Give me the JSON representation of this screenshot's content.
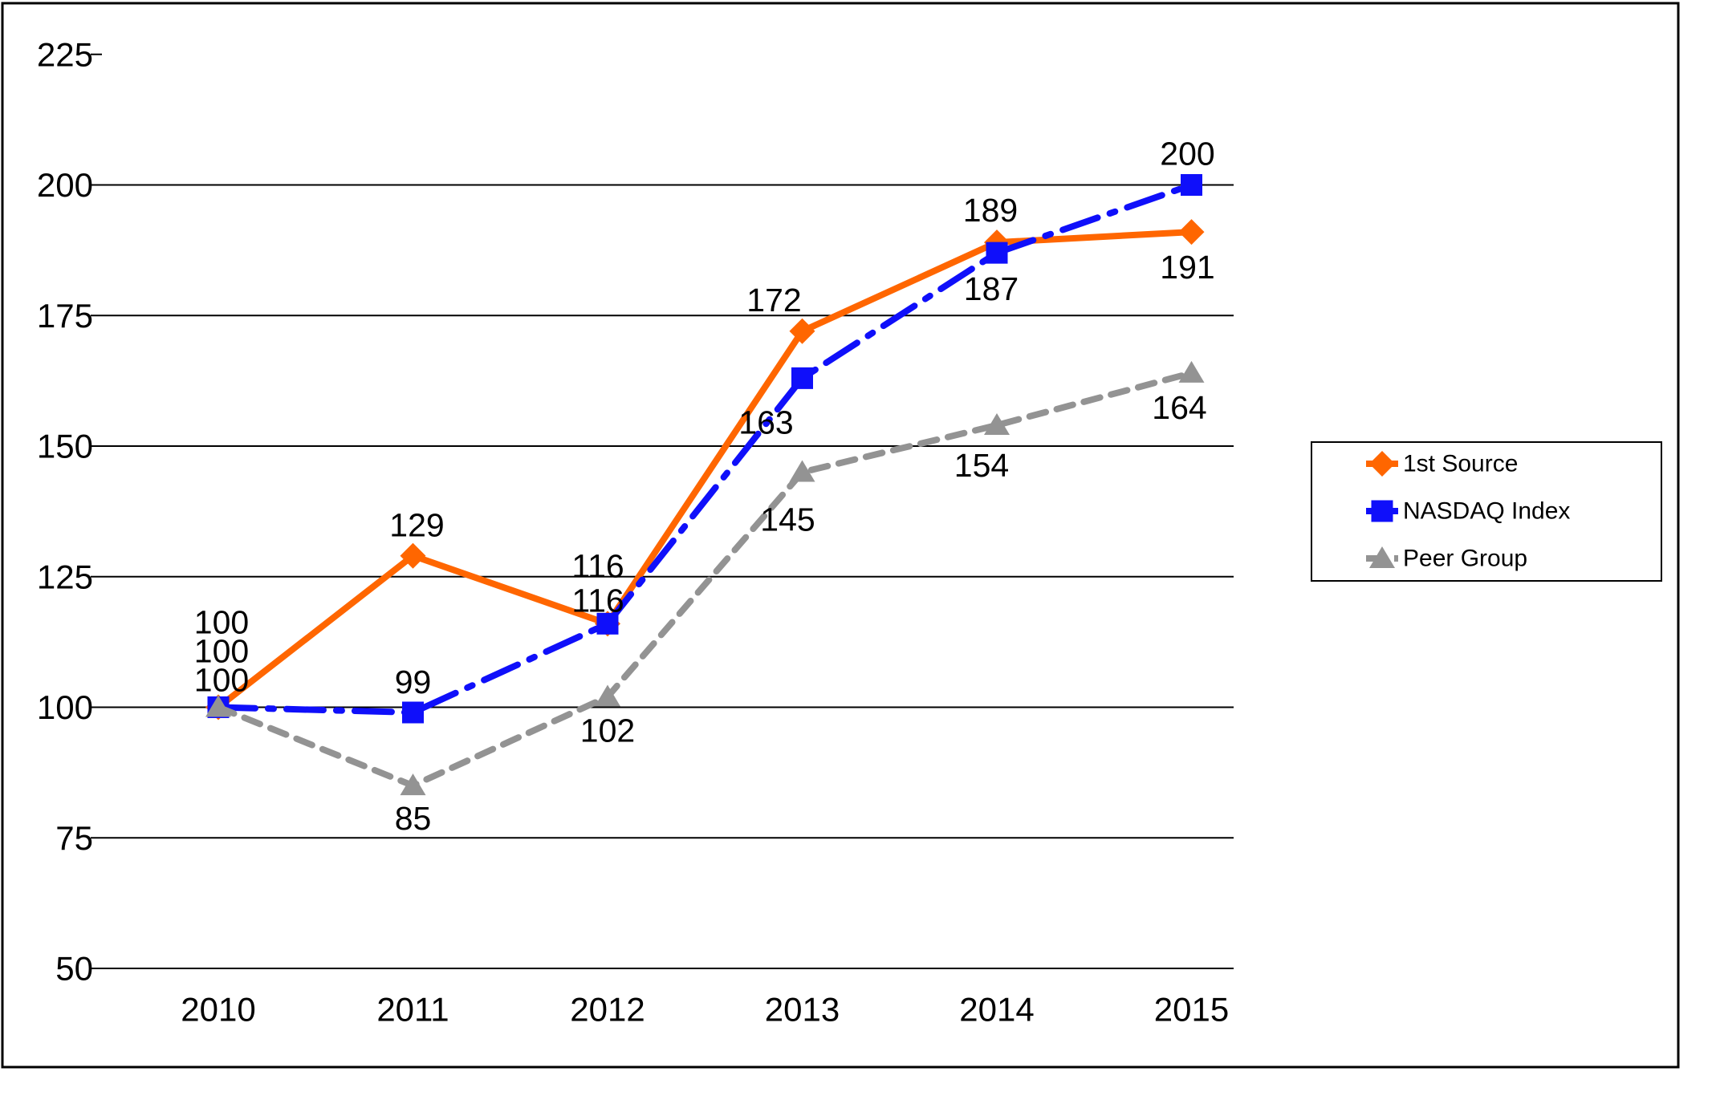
{
  "window": {
    "background": "#FFFFFF",
    "frame_border_color": "#000000"
  },
  "chart_data": {
    "type": "line",
    "title": "",
    "xlabel": "",
    "ylabel": "",
    "categories": [
      "2010",
      "2011",
      "2012",
      "2013",
      "2014",
      "2015"
    ],
    "series": [
      {
        "name": "1st Source",
        "color": "#FF6600",
        "marker": "diamond",
        "line_style": "solid",
        "values": [
          100,
          129,
          116,
          172,
          189,
          191
        ],
        "label_offsets": [
          [
            4,
            -106
          ],
          [
            5,
            -38
          ],
          [
            -12,
            -72
          ],
          [
            -35,
            -39
          ],
          [
            -8,
            -40
          ],
          [
            -5,
            44
          ]
        ]
      },
      {
        "name": "NASDAQ Index",
        "color": "#0F0FFA",
        "marker": "square",
        "line_style": "dash-dot",
        "values": [
          100,
          99,
          116,
          163,
          187,
          200
        ],
        "label_offsets": [
          [
            4,
            -70
          ],
          [
            0,
            -38
          ],
          [
            -12,
            -29
          ],
          [
            -45,
            55
          ],
          [
            -7,
            45
          ],
          [
            -5,
            -39
          ]
        ]
      },
      {
        "name": "Peer Group",
        "color": "#939393",
        "marker": "triangle",
        "line_style": "dashed",
        "values": [
          100,
          85,
          102,
          145,
          154,
          164
        ],
        "label_offsets": [
          [
            4,
            -34
          ],
          [
            0,
            41
          ],
          [
            0,
            42
          ],
          [
            -18,
            59
          ],
          [
            -19,
            50
          ],
          [
            -15,
            43
          ]
        ]
      }
    ],
    "ylim": [
      50,
      225
    ],
    "ytick_step": 25,
    "ytick_labels": [
      "225",
      "200",
      "175",
      "150",
      "125",
      "100",
      "75",
      "50"
    ],
    "grid": true,
    "gridline_color": "#000000",
    "text_color": "#000000",
    "data_labels": true,
    "legend": {
      "position": "right",
      "border_color": "#000000",
      "background": "#FFFFFF",
      "items": [
        "1st Source",
        "NASDAQ Index",
        "Peer Group"
      ]
    }
  }
}
